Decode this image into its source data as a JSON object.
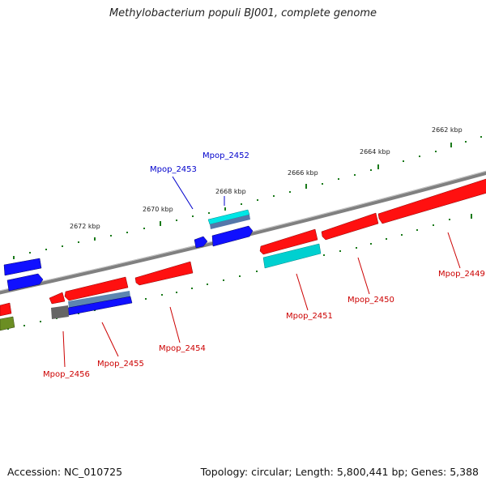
{
  "title": "Methylobacterium populi BJ001, complete genome",
  "footer": {
    "accession": "Accession: NC_010725",
    "topology": "Topology: circular; Length: 5,800,441 bp; Genes: 5,388"
  },
  "scale_labels": [
    "2662 kbp",
    "2664 kbp",
    "2666 kbp",
    "2668 kbp",
    "2670 kbp",
    "2672 kbp"
  ],
  "genes": [
    {
      "name": "Mpop_2449",
      "strand": "reverse",
      "color": "#ff0000"
    },
    {
      "name": "Mpop_2450",
      "strand": "reverse",
      "color": "#ff0000"
    },
    {
      "name": "Mpop_2451",
      "strand": "reverse",
      "color": "#ff0000"
    },
    {
      "name": "Mpop_2452",
      "strand": "forward",
      "color": "#0000ff"
    },
    {
      "name": "Mpop_2453",
      "strand": "forward",
      "color": "#0000ff"
    },
    {
      "name": "Mpop_2454",
      "strand": "reverse",
      "color": "#ff0000"
    },
    {
      "name": "Mpop_2455",
      "strand": "reverse",
      "color": "#ff0000"
    },
    {
      "name": "Mpop_2456",
      "strand": "reverse",
      "color": "#ff0000"
    }
  ],
  "colors": {
    "forward_cds": "#0000ff",
    "reverse_cds": "#ff0000",
    "rna": "#00cccc",
    "tick": "#006600",
    "backbone": "#808080"
  }
}
